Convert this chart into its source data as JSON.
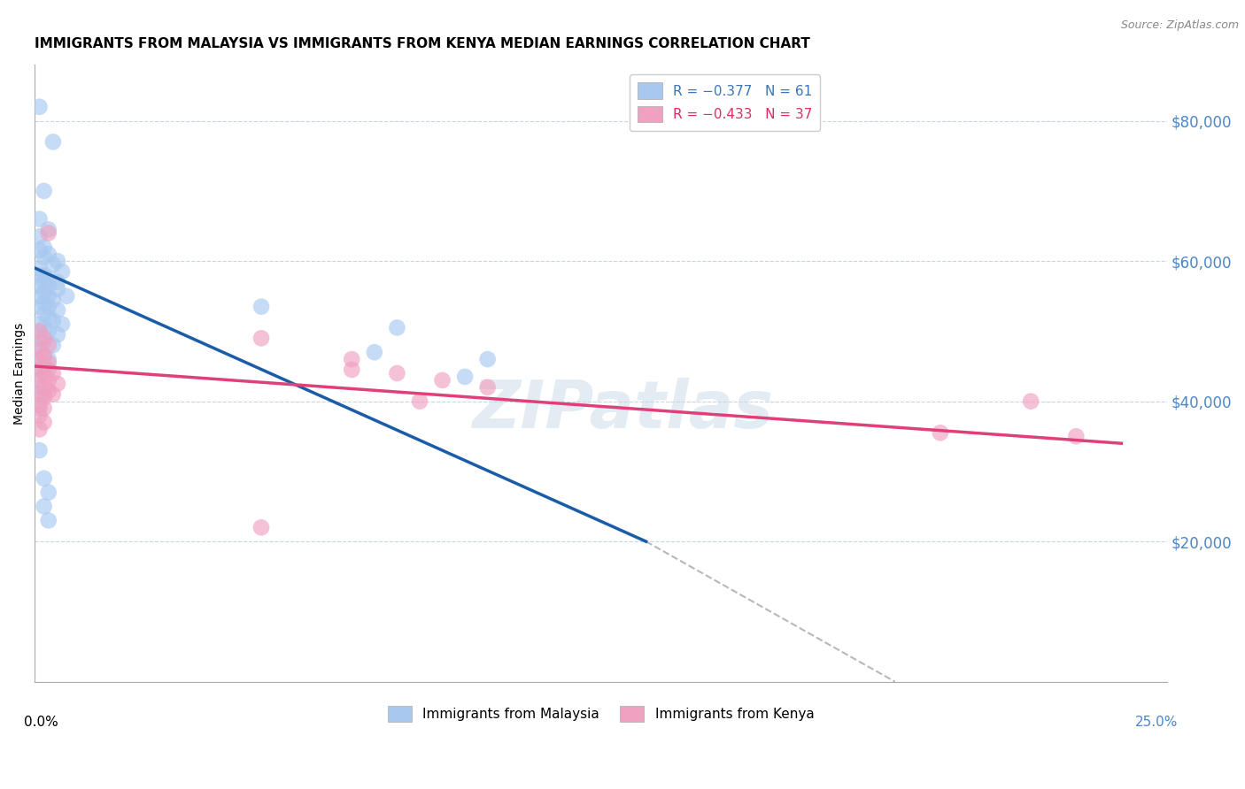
{
  "title": "IMMIGRANTS FROM MALAYSIA VS IMMIGRANTS FROM KENYA MEDIAN EARNINGS CORRELATION CHART",
  "source": "Source: ZipAtlas.com",
  "ylabel": "Median Earnings",
  "y_tick_labels": [
    "$20,000",
    "$40,000",
    "$60,000",
    "$80,000"
  ],
  "y_ticks": [
    20000,
    40000,
    60000,
    80000
  ],
  "y_min": 0,
  "y_max": 88000,
  "x_min": 0.0,
  "x_max": 0.25,
  "malaysia_line_x": [
    0.0,
    0.135
  ],
  "malaysia_line_y": [
    59000,
    20000
  ],
  "kenya_line_x": [
    0.0,
    0.24
  ],
  "kenya_line_y": [
    45000,
    34000
  ],
  "dashed_line_x": [
    0.135,
    0.19
  ],
  "dashed_line_y": [
    20000,
    0
  ],
  "malaysia_scatter_color": "#a8c8f0",
  "kenya_scatter_color": "#f0a0c0",
  "malaysia_line_color": "#1a5ca8",
  "kenya_line_color": "#e0407a",
  "dashed_line_color": "#b8b8b8",
  "grid_color": "#c8d4e8",
  "right_label_color": "#4a86c8",
  "title_fontsize": 11,
  "source_fontsize": 9,
  "legend_fontsize": 11,
  "malaysia_points": [
    [
      0.001,
      82000
    ],
    [
      0.004,
      77000
    ],
    [
      0.002,
      70000
    ],
    [
      0.001,
      66000
    ],
    [
      0.003,
      64500
    ],
    [
      0.001,
      63500
    ],
    [
      0.002,
      62000
    ],
    [
      0.003,
      61000
    ],
    [
      0.005,
      60000
    ],
    [
      0.001,
      61500
    ],
    [
      0.002,
      60500
    ],
    [
      0.004,
      59500
    ],
    [
      0.006,
      58500
    ],
    [
      0.001,
      59000
    ],
    [
      0.002,
      58000
    ],
    [
      0.003,
      57500
    ],
    [
      0.005,
      57000
    ],
    [
      0.001,
      58000
    ],
    [
      0.002,
      57000
    ],
    [
      0.003,
      56500
    ],
    [
      0.005,
      56000
    ],
    [
      0.007,
      55000
    ],
    [
      0.001,
      56500
    ],
    [
      0.002,
      55500
    ],
    [
      0.003,
      55000
    ],
    [
      0.004,
      54500
    ],
    [
      0.001,
      55000
    ],
    [
      0.002,
      54000
    ],
    [
      0.003,
      53500
    ],
    [
      0.005,
      53000
    ],
    [
      0.001,
      53500
    ],
    [
      0.002,
      52500
    ],
    [
      0.003,
      52000
    ],
    [
      0.004,
      51500
    ],
    [
      0.006,
      51000
    ],
    [
      0.001,
      51000
    ],
    [
      0.002,
      50500
    ],
    [
      0.003,
      50000
    ],
    [
      0.005,
      49500
    ],
    [
      0.001,
      49000
    ],
    [
      0.002,
      48500
    ],
    [
      0.004,
      48000
    ],
    [
      0.001,
      47000
    ],
    [
      0.002,
      46500
    ],
    [
      0.003,
      46000
    ],
    [
      0.001,
      45000
    ],
    [
      0.002,
      44000
    ],
    [
      0.001,
      42000
    ],
    [
      0.002,
      41000
    ],
    [
      0.001,
      39000
    ],
    [
      0.001,
      33000
    ],
    [
      0.002,
      29000
    ],
    [
      0.003,
      27000
    ],
    [
      0.002,
      25000
    ],
    [
      0.003,
      23000
    ],
    [
      0.05,
      53500
    ],
    [
      0.08,
      50500
    ],
    [
      0.1,
      46000
    ],
    [
      0.075,
      47000
    ],
    [
      0.095,
      43500
    ]
  ],
  "kenya_points": [
    [
      0.001,
      50000
    ],
    [
      0.002,
      49000
    ],
    [
      0.003,
      48000
    ],
    [
      0.001,
      47500
    ],
    [
      0.002,
      46500
    ],
    [
      0.003,
      45500
    ],
    [
      0.001,
      46000
    ],
    [
      0.002,
      45000
    ],
    [
      0.003,
      44500
    ],
    [
      0.004,
      44000
    ],
    [
      0.001,
      44500
    ],
    [
      0.002,
      43500
    ],
    [
      0.003,
      43000
    ],
    [
      0.005,
      42500
    ],
    [
      0.001,
      43000
    ],
    [
      0.002,
      42000
    ],
    [
      0.003,
      41500
    ],
    [
      0.004,
      41000
    ],
    [
      0.001,
      41000
    ],
    [
      0.002,
      40500
    ],
    [
      0.001,
      39500
    ],
    [
      0.002,
      39000
    ],
    [
      0.001,
      38000
    ],
    [
      0.002,
      37000
    ],
    [
      0.001,
      36000
    ],
    [
      0.003,
      64000
    ],
    [
      0.05,
      49000
    ],
    [
      0.07,
      46000
    ],
    [
      0.08,
      44000
    ],
    [
      0.09,
      43000
    ],
    [
      0.1,
      42000
    ],
    [
      0.07,
      44500
    ],
    [
      0.085,
      40000
    ],
    [
      0.05,
      22000
    ],
    [
      0.22,
      40000
    ],
    [
      0.23,
      35000
    ],
    [
      0.2,
      35500
    ]
  ]
}
